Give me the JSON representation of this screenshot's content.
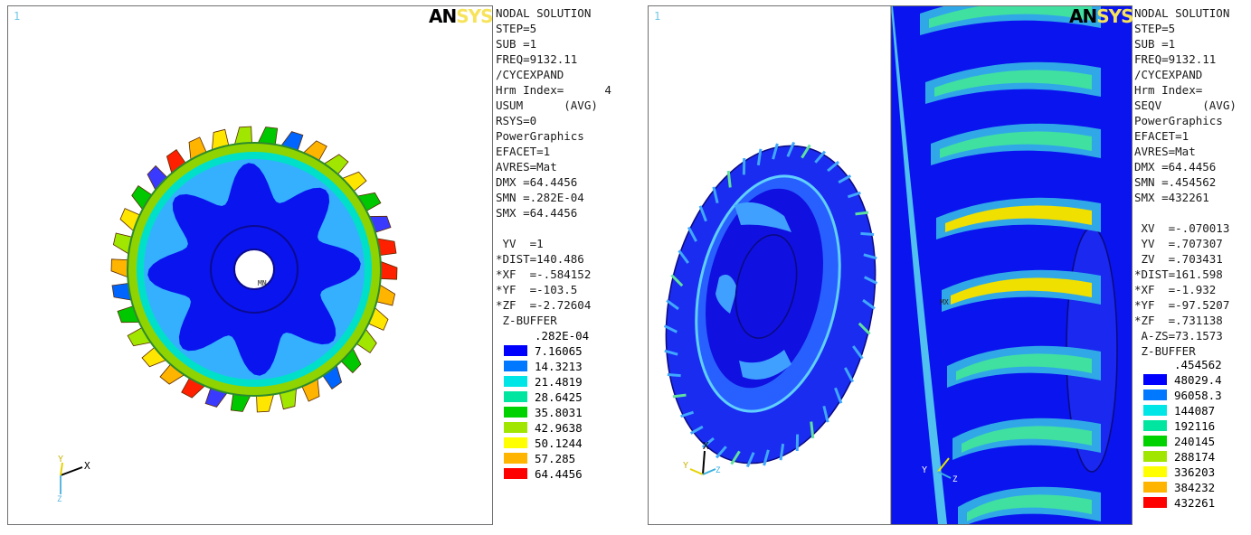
{
  "left": {
    "view_number": "1",
    "logo": {
      "an": "AN",
      "sys": "SYS"
    },
    "info_lines": [
      "NODAL SOLUTION",
      "STEP=5",
      "SUB =1",
      "FREQ=9132.11",
      "/CYCEXPAND",
      "Hrm Index=      4",
      "USUM      (AVG)",
      "RSYS=0",
      "PowerGraphics",
      "EFACET=1",
      "AVRES=Mat",
      "DMX =64.4456",
      "SMN =.282E-04",
      "SMX =64.4456",
      "",
      " YV  =1",
      "*DIST=140.486",
      "*XF  =-.584152",
      "*YF  =-103.5",
      "*ZF  =-2.72604",
      " Z-BUFFER"
    ],
    "legend_top": ".282E-04",
    "legend_values": [
      "7.16065",
      "14.3213",
      "21.4819",
      "28.6425",
      "35.8031",
      "42.9638",
      "50.1244",
      "57.285",
      "64.4456"
    ],
    "triad": {
      "x": "X",
      "y": "Y",
      "z": "Z"
    },
    "node_label": "MN"
  },
  "right": {
    "view_number": "1",
    "logo": {
      "an": "AN",
      "sys": "SYS"
    },
    "info_lines": [
      "NODAL SOLUTION",
      "STEP=5",
      "SUB =1",
      "FREQ=9132.11",
      "/CYCEXPAND",
      "Hrm Index=",
      "SEQV      (AVG)",
      "PowerGraphics",
      "EFACET=1",
      "AVRES=Mat",
      "DMX =64.4456",
      "SMN =.454562",
      "SMX =432261",
      "",
      " XV  =-.070013",
      " YV  =.707307",
      " ZV  =.703431",
      "*DIST=161.598",
      "*XF  =-1.932",
      "*YF  =-97.5207",
      "*ZF  =.731138",
      " A-ZS=73.1573",
      " Z-BUFFER"
    ],
    "legend_top": ".454562",
    "legend_values": [
      "48029.4",
      "96058.3",
      "144087",
      "192116",
      "240145",
      "288174",
      "336203",
      "384232",
      "432261"
    ],
    "triad_left": {
      "x": "X",
      "y": "Y",
      "z": "Z"
    },
    "triad_right": {
      "y": "Y",
      "z": "Z"
    },
    "node_label": "MX"
  },
  "legend_colors": [
    "#0000ff",
    "#0078ff",
    "#00e6e6",
    "#00e6a0",
    "#00d200",
    "#a0e600",
    "#ffff00",
    "#ffb400",
    "#ff0000"
  ]
}
